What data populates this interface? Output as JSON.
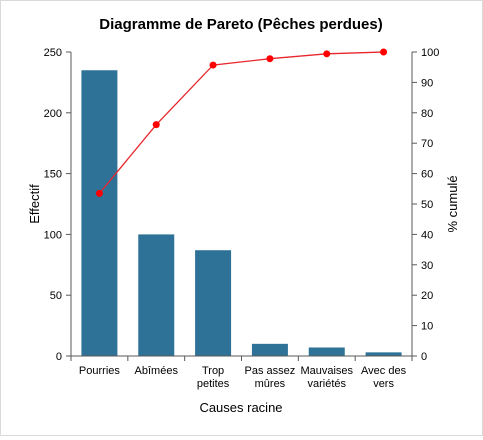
{
  "chart_data": {
    "type": "bar",
    "title": "Diagramme de Pareto (Pêches perdues)",
    "xlabel": "Causes racine",
    "ylabel": "Effectif",
    "y2label": "% cumulé",
    "ylim": [
      0,
      250
    ],
    "y2lim": [
      0,
      100
    ],
    "yticks": [
      "0",
      "50",
      "100",
      "150",
      "200",
      "250"
    ],
    "y2ticks": [
      "0",
      "10",
      "20",
      "30",
      "40",
      "50",
      "60",
      "70",
      "80",
      "90",
      "100"
    ],
    "categories": [
      [
        "Pourries"
      ],
      [
        "Abîmées"
      ],
      [
        "Trop",
        "petites"
      ],
      [
        "Pas assez",
        "mûres"
      ],
      [
        "Mauvaises",
        "variétés"
      ],
      [
        "Avec des",
        "vers"
      ]
    ],
    "series": [
      {
        "type": "bar",
        "values": [
          235,
          100,
          87,
          10,
          7,
          3
        ]
      },
      {
        "type": "line",
        "axis": "secondary",
        "values": [
          53.5,
          76.1,
          95.7,
          97.8,
          99.4,
          100
        ]
      }
    ],
    "colors": {
      "bar": "#2E7397",
      "line": "#E8262C",
      "marker": "#FF0000",
      "axis": "#595959"
    },
    "grid": false,
    "legend": "none"
  }
}
